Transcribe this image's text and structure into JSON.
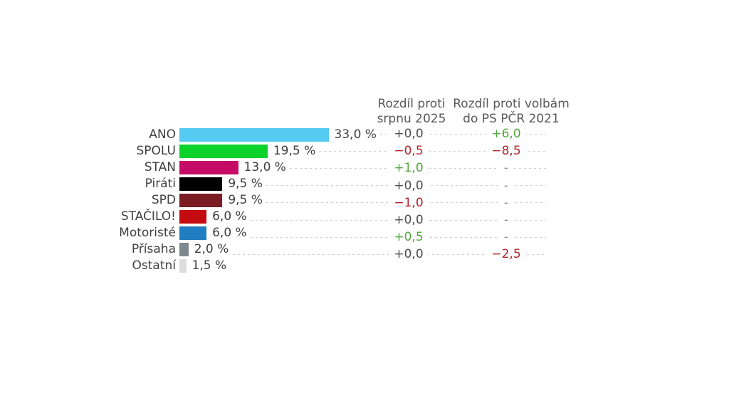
{
  "chart_data": {
    "type": "bar",
    "orientation": "horizontal",
    "title": "",
    "unit_suffix": " %",
    "grid": false,
    "categories": [
      "ANO",
      "SPOLU",
      "STAN",
      "Piráti",
      "SPD",
      "STAČILO!",
      "Motoristé",
      "Přísaha",
      "Ostatní"
    ],
    "values": [
      33.0,
      19.5,
      13.0,
      9.5,
      9.5,
      6.0,
      6.0,
      2.0,
      1.5
    ],
    "value_labels": [
      "33,0 %",
      "19,5 %",
      "13,0 %",
      "9,5 %",
      "9,5 %",
      "6,0 %",
      "6,0 %",
      "2,0 %",
      "1,5 %"
    ],
    "bar_colors": [
      "#55cbf2",
      "#0cd32b",
      "#c60b66",
      "#000000",
      "#7b1c23",
      "#c40b10",
      "#1e7ec0",
      "#7d898d",
      "#dcdcdc"
    ],
    "diff_columns": [
      {
        "header": "Rozdíl proti srpnu 2025",
        "header_lines": [
          "Rozdíl proti",
          "srpnu 2025"
        ],
        "values": [
          "+0,0",
          "−0,5",
          "+1,0",
          "+0,0",
          "−1,0",
          "+0,0",
          "+0,5",
          "+0,0",
          null
        ]
      },
      {
        "header": "Rozdíl proti volbám do PS PČR 2021",
        "header_lines": [
          "Rozdíl proti volbám",
          "do PS PČR 2021"
        ],
        "values": [
          "+6,0",
          "−8,5",
          "-",
          "-",
          "-",
          "-",
          "-",
          "−2,5",
          null
        ]
      }
    ],
    "colors": {
      "positive": "#4fa83d",
      "negative": "#b22428",
      "zero": "#4d4d4d",
      "placeholder": "#8a8a8a",
      "leader_dash": "#cfcfcf",
      "label_text": "#3f3f3f",
      "header_text": "#595959",
      "background": "#ffffff"
    }
  }
}
